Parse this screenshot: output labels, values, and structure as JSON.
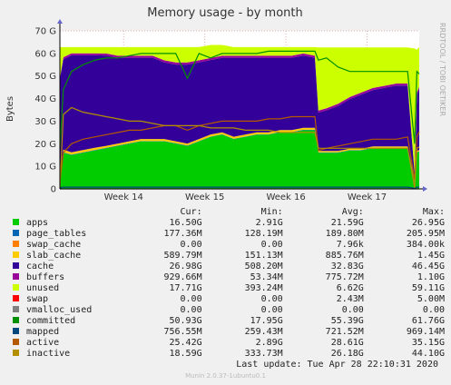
{
  "chart_data": {
    "type": "area",
    "title": "Memory usage - by month",
    "ylabel": "Bytes",
    "side_label": "RRDTOOL / TOBI OETIKER",
    "ylim": [
      0,
      70
    ],
    "yticks": [
      {
        "v": 0,
        "label": "0"
      },
      {
        "v": 10,
        "label": "10 G"
      },
      {
        "v": 20,
        "label": "20 G"
      },
      {
        "v": 30,
        "label": "30 G"
      },
      {
        "v": 40,
        "label": "40 G"
      },
      {
        "v": 50,
        "label": "50 G"
      },
      {
        "v": 60,
        "label": "60 G"
      },
      {
        "v": 70,
        "label": "70 G"
      }
    ],
    "xlim": [
      0,
      31
    ],
    "xticks": [
      {
        "x": 5.5,
        "label": "Week 14"
      },
      {
        "x": 12.5,
        "label": "Week 15"
      },
      {
        "x": 19.5,
        "label": "Week 16"
      },
      {
        "x": 26.5,
        "label": "Week 17"
      }
    ],
    "x": [
      0,
      0.3,
      1,
      2,
      3,
      4,
      5,
      6,
      7,
      8,
      9,
      10,
      11,
      12,
      13,
      14,
      15,
      16,
      17,
      18,
      19,
      20,
      21,
      22,
      22.3,
      23,
      24,
      25,
      26,
      27,
      28,
      29,
      30,
      30.6,
      30.8,
      31
    ],
    "series": [
      {
        "name": "apps",
        "kind": "stack",
        "color": "#00cc00",
        "values": [
          2.9,
          16,
          15,
          16,
          17,
          18,
          19,
          20,
          21,
          21,
          21,
          20,
          19,
          21,
          23,
          24,
          22,
          23,
          24,
          24,
          25,
          25,
          26,
          26,
          16,
          16,
          16,
          17,
          17,
          18,
          18,
          18,
          18,
          3,
          16,
          16.5
        ]
      },
      {
        "name": "page_tables",
        "kind": "stack",
        "color": "#0066b3",
        "values": [
          0.18,
          0.18,
          0.18,
          0.18,
          0.18,
          0.18,
          0.18,
          0.18,
          0.18,
          0.18,
          0.18,
          0.18,
          0.18,
          0.18,
          0.18,
          0.18,
          0.18,
          0.18,
          0.18,
          0.18,
          0.18,
          0.18,
          0.18,
          0.18,
          0.18,
          0.18,
          0.18,
          0.18,
          0.18,
          0.18,
          0.18,
          0.18,
          0.18,
          0.18,
          0.18,
          0.18
        ]
      },
      {
        "name": "swap_cache",
        "kind": "stack",
        "color": "#ff8000",
        "values": [
          0,
          0,
          0,
          0,
          0,
          0,
          0,
          0,
          0,
          0,
          0,
          0,
          0,
          0,
          0,
          0,
          0,
          0,
          0,
          0,
          0,
          0,
          0,
          0,
          0,
          0,
          0,
          0,
          0,
          0,
          0,
          0,
          0,
          0,
          0,
          0
        ]
      },
      {
        "name": "slab_cache",
        "kind": "stack",
        "color": "#ffcc00",
        "values": [
          0.5,
          1.2,
          1.0,
          1.0,
          1.0,
          0.9,
          0.9,
          0.9,
          0.9,
          0.9,
          0.9,
          0.9,
          0.9,
          0.9,
          0.9,
          0.9,
          0.9,
          0.9,
          0.9,
          0.9,
          0.9,
          0.9,
          0.9,
          0.9,
          0.6,
          0.6,
          0.6,
          0.6,
          0.6,
          0.6,
          0.6,
          0.6,
          0.6,
          0.5,
          0.6,
          0.59
        ]
      },
      {
        "name": "cache",
        "kind": "stack",
        "color": "#330099",
        "values": [
          45,
          40,
          43,
          42,
          41,
          40,
          38,
          37,
          36,
          36,
          34,
          34,
          35,
          34,
          33,
          33,
          35,
          34,
          33,
          33,
          32,
          32,
          32,
          31,
          17,
          18,
          20,
          22,
          24,
          25,
          26,
          27,
          27,
          3,
          25,
          27
        ]
      },
      {
        "name": "buffers",
        "kind": "stack",
        "color": "#990099",
        "values": [
          0.5,
          0.9,
          0.9,
          0.9,
          0.9,
          0.9,
          0.9,
          0.9,
          0.9,
          0.9,
          0.9,
          0.9,
          0.9,
          0.9,
          0.9,
          0.9,
          0.9,
          0.9,
          0.9,
          0.9,
          0.9,
          0.9,
          0.9,
          0.9,
          0.9,
          0.9,
          0.9,
          0.9,
          0.9,
          0.9,
          0.9,
          0.9,
          0.9,
          0.5,
          0.9,
          0.93
        ]
      },
      {
        "name": "unused",
        "kind": "stack",
        "color": "#ccff00",
        "values": [
          13.7,
          4.5,
          2.7,
          2.7,
          2.7,
          2.8,
          3.8,
          3.8,
          3.8,
          3.8,
          5.8,
          6.8,
          6.8,
          5.8,
          5.8,
          4.8,
          3.8,
          3.8,
          3.8,
          3.8,
          3.8,
          3.8,
          2.8,
          3.8,
          28,
          27,
          25,
          22,
          20,
          18,
          17,
          16,
          16,
          55,
          19,
          17.7
        ]
      },
      {
        "name": "swap",
        "kind": "stack",
        "color": "#ff0000",
        "values": [
          0,
          0,
          0,
          0,
          0,
          0,
          0,
          0,
          0,
          0,
          0,
          0,
          0,
          0,
          0,
          0,
          0,
          0,
          0,
          0,
          0,
          0,
          0,
          0,
          0,
          0,
          0,
          0,
          0,
          0,
          0,
          0,
          0,
          0,
          0,
          0
        ]
      },
      {
        "name": "vmalloc_used",
        "kind": "line",
        "color": "#808080",
        "values": [
          0,
          0,
          0,
          0,
          0,
          0,
          0,
          0,
          0,
          0,
          0,
          0,
          0,
          0,
          0,
          0,
          0,
          0,
          0,
          0,
          0,
          0,
          0,
          0,
          0,
          0,
          0,
          0,
          0,
          0,
          0,
          0,
          0,
          0,
          0,
          0
        ]
      },
      {
        "name": "committed",
        "kind": "line",
        "color": "#008f00",
        "values": [
          18,
          44,
          52,
          55,
          57,
          58,
          58,
          59,
          60,
          60,
          60,
          60,
          49,
          60,
          58,
          60,
          60,
          60,
          60,
          61,
          61,
          61,
          61,
          61,
          57,
          58,
          54,
          52,
          52,
          52,
          52,
          52,
          52,
          20,
          52,
          50.9
        ]
      },
      {
        "name": "mapped",
        "kind": "line",
        "color": "#00487d",
        "values": [
          0.4,
          0.75,
          0.75,
          0.75,
          0.75,
          0.75,
          0.75,
          0.75,
          0.75,
          0.75,
          0.75,
          0.75,
          0.75,
          0.75,
          0.75,
          0.75,
          0.75,
          0.75,
          0.75,
          0.75,
          0.75,
          0.75,
          0.75,
          0.75,
          0.75,
          0.75,
          0.75,
          0.75,
          0.75,
          0.75,
          0.75,
          0.75,
          0.75,
          0.3,
          0.75,
          0.76
        ]
      },
      {
        "name": "active",
        "kind": "line",
        "color": "#b35a00",
        "values": [
          3,
          16,
          20,
          22,
          23,
          24,
          25,
          26,
          26,
          27,
          28,
          28,
          26,
          28,
          29,
          30,
          30,
          30,
          30,
          31,
          31,
          32,
          32,
          32,
          17,
          18,
          19,
          20,
          21,
          22,
          22,
          22,
          23,
          4,
          23,
          25.4
        ]
      },
      {
        "name": "inactive",
        "kind": "line",
        "color": "#b38f00",
        "values": [
          0.5,
          33,
          36,
          34,
          33,
          32,
          31,
          30,
          30,
          29,
          28,
          28,
          28,
          28,
          27,
          27,
          27,
          26,
          26,
          26,
          25,
          25,
          25,
          25,
          18,
          18,
          18,
          18,
          18,
          18,
          18,
          18,
          18,
          0.5,
          18,
          18.6
        ]
      }
    ]
  },
  "legend": {
    "headers": {
      "cur": "Cur:",
      "min": "Min:",
      "avg": "Avg:",
      "max": "Max:"
    },
    "rows": [
      {
        "name": "apps",
        "color": "#00cc00",
        "cur": "16.50G",
        "min": "2.91G",
        "avg": "21.59G",
        "max": "26.95G"
      },
      {
        "name": "page_tables",
        "color": "#0066b3",
        "cur": "177.36M",
        "min": "128.19M",
        "avg": "189.80M",
        "max": "205.95M"
      },
      {
        "name": "swap_cache",
        "color": "#ff8000",
        "cur": "0.00",
        "min": "0.00",
        "avg": "7.96k",
        "max": "384.00k"
      },
      {
        "name": "slab_cache",
        "color": "#ffcc00",
        "cur": "589.79M",
        "min": "151.13M",
        "avg": "885.76M",
        "max": "1.45G"
      },
      {
        "name": "cache",
        "color": "#330099",
        "cur": "26.98G",
        "min": "508.20M",
        "avg": "32.83G",
        "max": "46.45G"
      },
      {
        "name": "buffers",
        "color": "#990099",
        "cur": "929.66M",
        "min": "53.34M",
        "avg": "775.72M",
        "max": "1.10G"
      },
      {
        "name": "unused",
        "color": "#ccff00",
        "cur": "17.71G",
        "min": "393.24M",
        "avg": "6.62G",
        "max": "59.11G"
      },
      {
        "name": "swap",
        "color": "#ff0000",
        "cur": "0.00",
        "min": "0.00",
        "avg": "2.43M",
        "max": "5.00M"
      },
      {
        "name": "vmalloc_used",
        "color": "#808080",
        "cur": "0.00",
        "min": "0.00",
        "avg": "0.00",
        "max": "0.00"
      },
      {
        "name": "committed",
        "color": "#008f00",
        "cur": "50.93G",
        "min": "17.95G",
        "avg": "55.39G",
        "max": "61.76G"
      },
      {
        "name": "mapped",
        "color": "#00487d",
        "cur": "756.55M",
        "min": "259.43M",
        "avg": "721.52M",
        "max": "969.14M"
      },
      {
        "name": "active",
        "color": "#b35a00",
        "cur": "25.42G",
        "min": "2.89G",
        "avg": "28.61G",
        "max": "35.15G"
      },
      {
        "name": "inactive",
        "color": "#b38f00",
        "cur": "18.59G",
        "min": "333.73M",
        "avg": "26.18G",
        "max": "44.10G"
      }
    ]
  },
  "last_update": "Last update: Tue Apr 28 22:10:31 2020",
  "footer": "Munin 2.0.37-1ubuntu0.1"
}
